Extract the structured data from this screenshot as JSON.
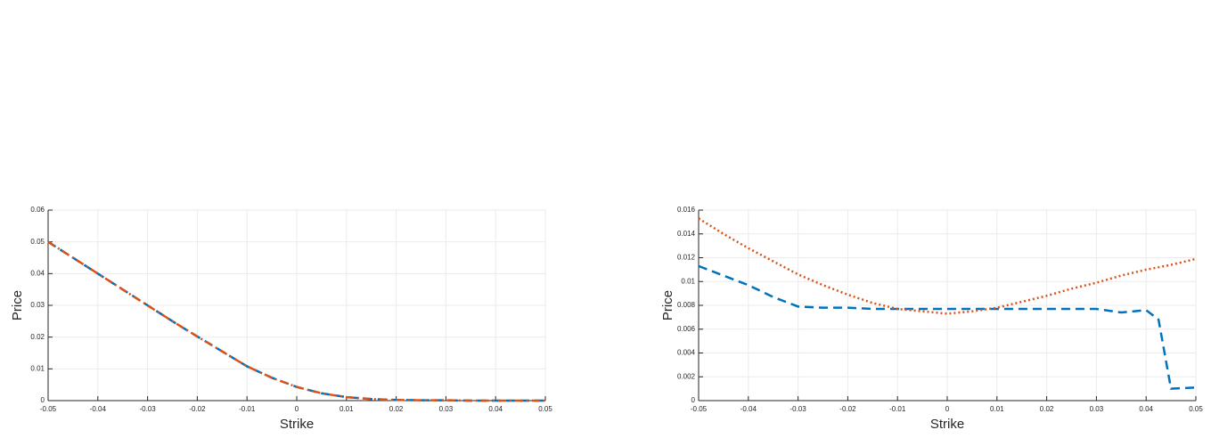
{
  "chart_data": [
    {
      "type": "line",
      "xlabel": "Strike",
      "ylabel": "Price",
      "x": [
        -0.05,
        -0.045,
        -0.04,
        -0.035,
        -0.03,
        -0.025,
        -0.02,
        -0.015,
        -0.01,
        -0.005,
        0,
        0.005,
        0.01,
        0.015,
        0.02,
        0.025,
        0.03,
        0.035,
        0.04,
        0.045,
        0.05
      ],
      "series": [
        {
          "color": "#0072bd",
          "dash": "dashed",
          "values": [
            0.05,
            0.045,
            0.04,
            0.035,
            0.03,
            0.025,
            0.0202,
            0.0155,
            0.0108,
            0.0072,
            0.0043,
            0.0023,
            0.0011,
            0.0005,
            0.0002,
            0.0001,
            0.0001,
            0,
            0,
            0,
            0
          ]
        },
        {
          "color": "#d95319",
          "dash": "dashdot",
          "values": [
            0.05,
            0.045,
            0.04,
            0.035,
            0.03,
            0.025,
            0.0202,
            0.0155,
            0.0108,
            0.0072,
            0.0043,
            0.0023,
            0.0011,
            0.0005,
            0.0002,
            0.0001,
            0.0001,
            0,
            0,
            0,
            0
          ]
        }
      ],
      "xlim": [
        -0.05,
        0.05
      ],
      "xticks": [
        -0.05,
        -0.04,
        -0.03,
        -0.02,
        -0.01,
        0,
        0.01,
        0.02,
        0.03,
        0.04,
        0.05
      ],
      "ylim": [
        0,
        0.06
      ],
      "yticks": [
        0,
        0.01,
        0.02,
        0.03,
        0.04,
        0.05,
        0.06
      ],
      "grid": true
    },
    {
      "type": "line",
      "xlabel": "Strike",
      "ylabel": "Price",
      "x": [
        -0.05,
        -0.045,
        -0.04,
        -0.035,
        -0.03,
        -0.025,
        -0.02,
        -0.015,
        -0.01,
        -0.005,
        0,
        0.005,
        0.01,
        0.015,
        0.02,
        0.025,
        0.03,
        0.035,
        0.04,
        0.0425,
        0.045,
        0.05
      ],
      "series": [
        {
          "color": "#0072bd",
          "dash": "dashed",
          "values": [
            0.0113,
            0.0105,
            0.0097,
            0.0087,
            0.0079,
            0.0078,
            0.0078,
            0.0077,
            0.0077,
            0.0077,
            0.0077,
            0.0077,
            0.0077,
            0.0077,
            0.0077,
            0.0077,
            0.0077,
            0.0074,
            0.0076,
            0.0068,
            0.001,
            0.0011
          ]
        },
        {
          "color": "#d95319",
          "dash": "dotted",
          "values": [
            0.0153,
            0.014,
            0.0128,
            0.0117,
            0.0106,
            0.0097,
            0.0089,
            0.0082,
            0.0077,
            0.0075,
            0.0073,
            0.0075,
            0.0078,
            0.0083,
            0.0088,
            0.0094,
            0.0099,
            0.0105,
            0.011,
            0.0112,
            0.0114,
            0.0119
          ]
        }
      ],
      "xlim": [
        -0.05,
        0.05
      ],
      "xticks": [
        -0.05,
        -0.04,
        -0.03,
        -0.02,
        -0.01,
        0,
        0.01,
        0.02,
        0.03,
        0.04,
        0.05
      ],
      "ylim": [
        0,
        0.016
      ],
      "yticks": [
        0,
        0.002,
        0.004,
        0.006,
        0.008,
        0.01,
        0.012,
        0.014,
        0.016
      ],
      "grid": true
    }
  ]
}
